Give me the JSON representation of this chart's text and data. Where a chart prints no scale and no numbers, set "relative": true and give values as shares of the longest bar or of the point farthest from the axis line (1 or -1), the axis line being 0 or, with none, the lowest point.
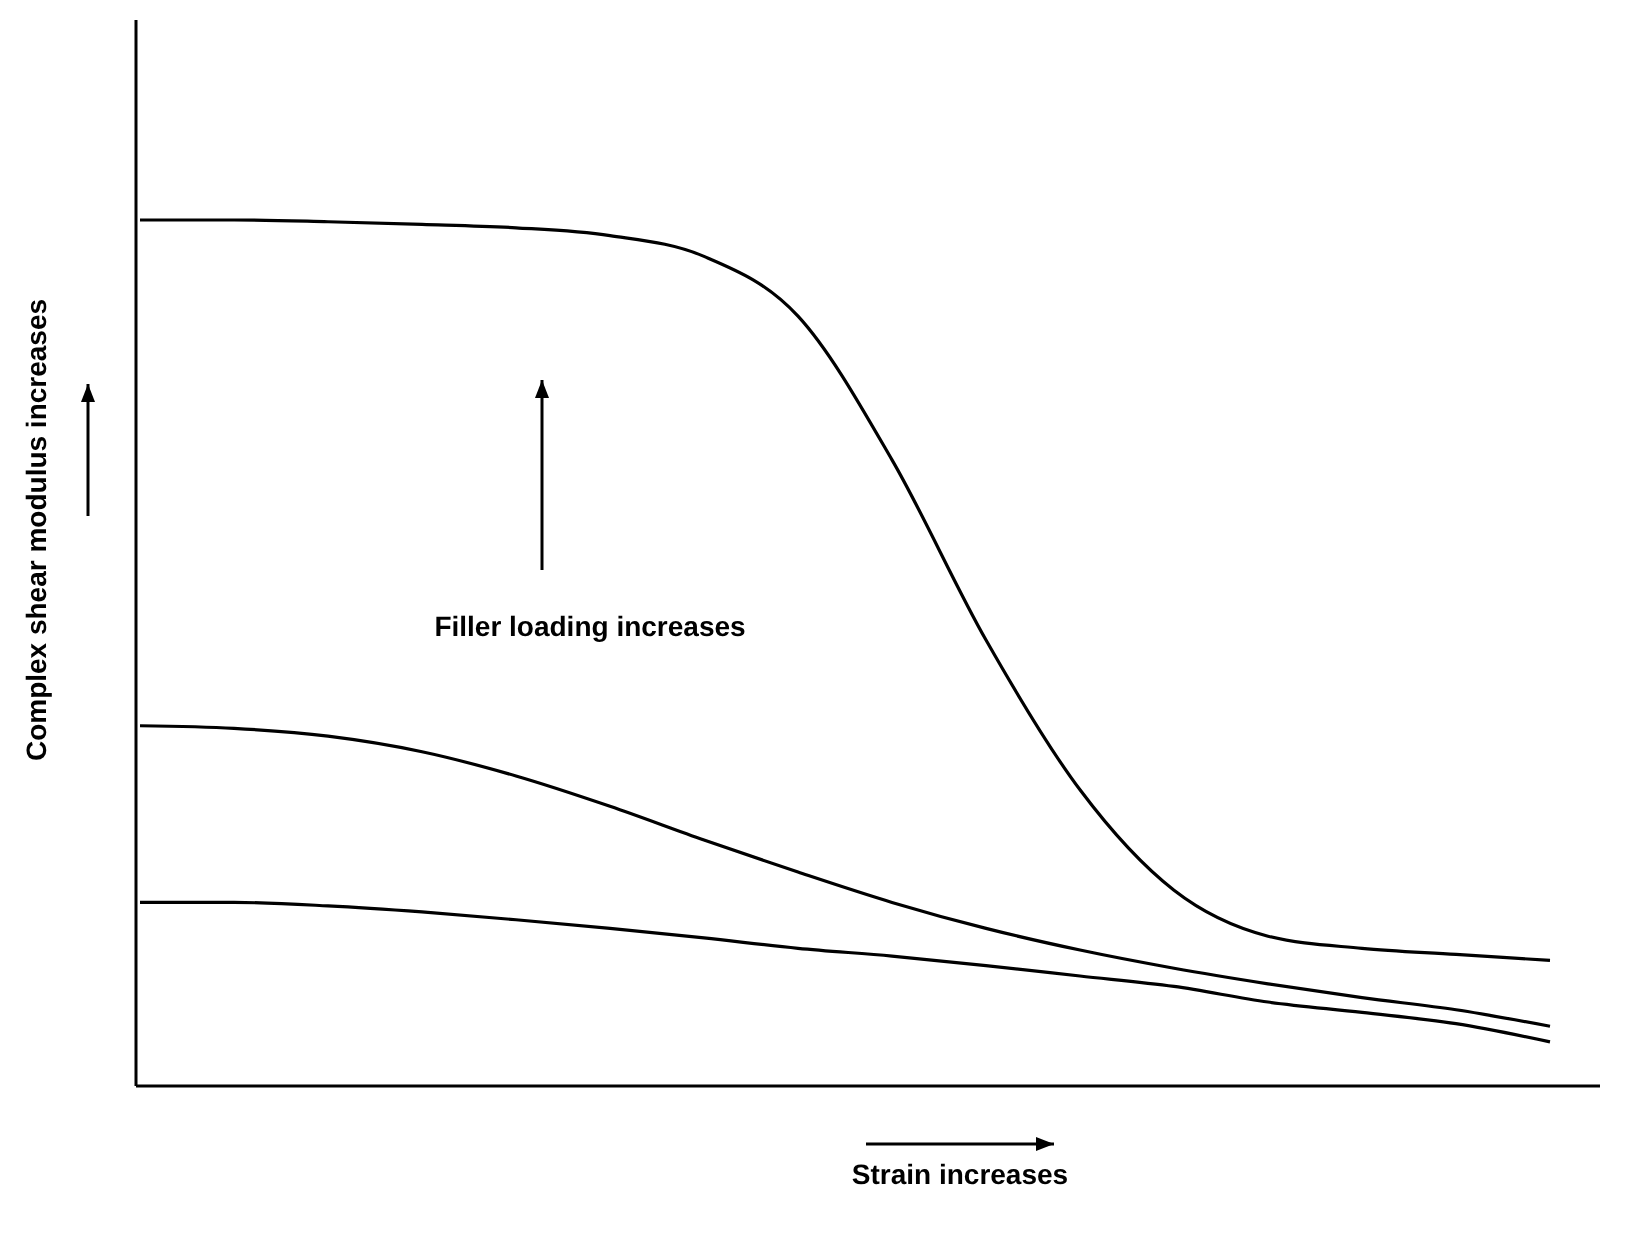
{
  "chart_data": {
    "type": "line",
    "relative": true,
    "xlabel": "Strain increases",
    "ylabel": "Complex shear modulus increases",
    "annotations": [
      "Filler loading increases"
    ],
    "categories": [
      null,
      null,
      null,
      null,
      null,
      null,
      null,
      null,
      null,
      null,
      null,
      null,
      null,
      null,
      null,
      null
    ],
    "series": [
      {
        "color": "#000000",
        "values": [
          1.0,
          1.0,
          0.998,
          0.995,
          0.991,
          0.982,
          0.958,
          0.889,
          0.723,
          0.515,
          0.342,
          0.226,
          0.173,
          0.159,
          0.152,
          0.145
        ]
      },
      {
        "color": "#000000",
        "values": [
          0.416,
          0.413,
          0.404,
          0.386,
          0.358,
          0.323,
          0.284,
          0.247,
          0.212,
          0.182,
          0.157,
          0.136,
          0.118,
          0.102,
          0.088,
          0.069
        ]
      },
      {
        "color": "#000000",
        "values": [
          0.212,
          0.212,
          0.208,
          0.201,
          0.192,
          0.182,
          0.171,
          0.159,
          0.15,
          0.139,
          0.127,
          0.115,
          0.097,
          0.085,
          0.072,
          0.051
        ]
      }
    ]
  }
}
